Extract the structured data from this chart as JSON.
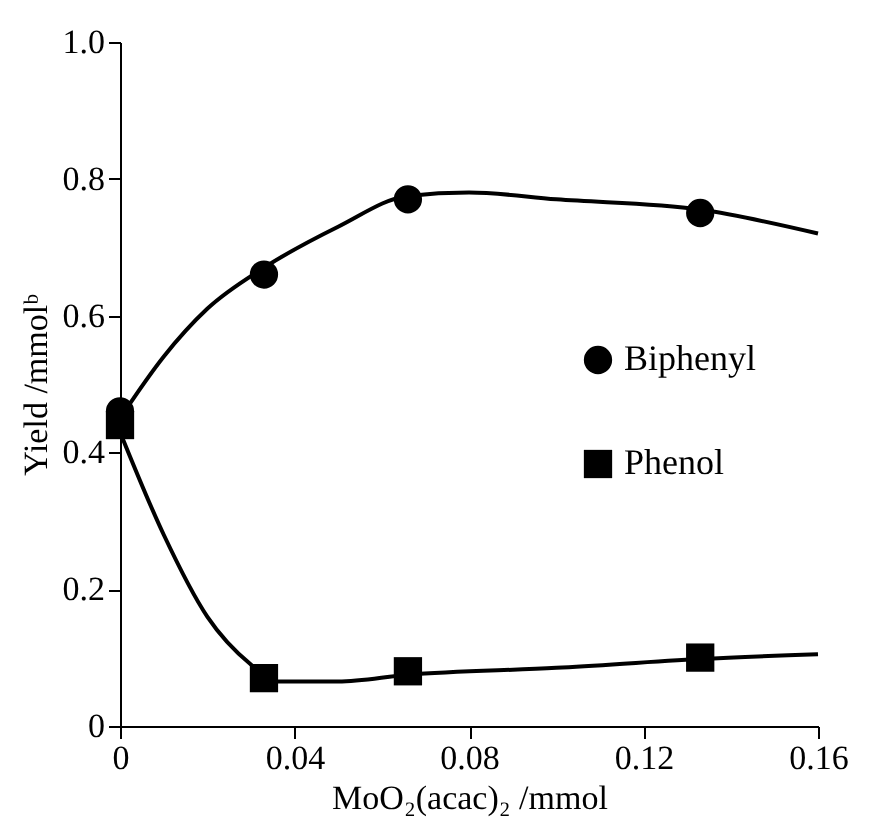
{
  "chart_data": {
    "type": "scatter",
    "xlabel": "MoO₂(acac)₂ /mmol",
    "ylabel": "Yield /mmolᵇ",
    "xlim": [
      0,
      0.16
    ],
    "xticks": [
      0,
      0.04,
      0.08,
      0.12,
      0.16
    ],
    "ylim": [
      0,
      1
    ],
    "yticks": [
      0,
      0.2,
      0.4,
      0.6,
      0.8,
      {
        "value": 1,
        "label": "1.0"
      }
    ],
    "grid": false,
    "legend": "right",
    "series": [
      {
        "type": "line",
        "color": "#000000",
        "x": [
          0,
          0.01,
          0.02,
          0.033,
          0.05,
          0.066,
          0.08,
          0.1,
          0.133,
          0.16
        ],
        "values": [
          0.45,
          0.54,
          0.61,
          0.67,
          0.73,
          0.775,
          0.78,
          0.77,
          0.755,
          0.72
        ]
      },
      {
        "type": "line",
        "color": "#000000",
        "x": [
          0,
          0.01,
          0.02,
          0.03,
          0.036,
          0.05,
          0.066,
          0.1,
          0.133,
          0.16
        ],
        "values": [
          0.43,
          0.28,
          0.16,
          0.09,
          0.065,
          0.065,
          0.075,
          0.085,
          0.098,
          0.105
        ]
      },
      {
        "name": "Biphenyl",
        "color": "#000000",
        "marker": "circle",
        "x": [
          0,
          0.033,
          0.066,
          0.133
        ],
        "values": [
          0.46,
          0.66,
          0.77,
          0.75
        ]
      },
      {
        "name": "Phenol",
        "color": "#000000",
        "marker": "square",
        "x": [
          0,
          0.033,
          0.066,
          0.133
        ],
        "values": [
          0.44,
          0.07,
          0.08,
          0.1
        ]
      }
    ]
  }
}
